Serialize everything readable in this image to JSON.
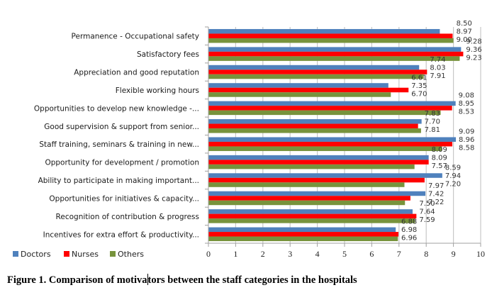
{
  "chart_data": {
    "type": "bar",
    "orientation": "horizontal",
    "title": "",
    "xlabel": "",
    "ylabel": "",
    "xlim": [
      0,
      10
    ],
    "x_ticks": [
      "0",
      "1",
      "2",
      "3",
      "4",
      "5",
      "6",
      "7",
      "8",
      "9",
      "10"
    ],
    "grid": true,
    "legend_position": "bottom-left",
    "categories": [
      "Permanence - Occupational safety",
      "Satisfactory fees",
      "Appreciation and good reputation",
      "Flexible working hours",
      "Opportunities to develop new knowledge -...",
      "Good supervision & support from senior...",
      "Staff training, seminars & training in new...",
      "Opportunity for development / promotion",
      "Ability to participate in making important...",
      "Opportunities for initiatives & capacity...",
      "Recognition of contribution & progress",
      "Incentives for extra effort & productivity..."
    ],
    "series": [
      {
        "name": "Doctors",
        "color": "#4f81bd",
        "values": [
          8.5,
          9.28,
          7.74,
          6.61,
          9.08,
          7.83,
          9.09,
          8.09,
          8.59,
          7.97,
          7.5,
          6.88
        ]
      },
      {
        "name": "Nurses",
        "color": "#ff0000",
        "values": [
          8.97,
          9.36,
          8.03,
          7.35,
          8.95,
          7.7,
          8.96,
          8.09,
          7.94,
          7.42,
          7.64,
          6.98
        ]
      },
      {
        "name": "Others",
        "color": "#77933c",
        "values": [
          9.0,
          9.23,
          7.91,
          6.7,
          8.53,
          7.81,
          8.58,
          7.57,
          7.2,
          7.22,
          7.59,
          6.96
        ]
      }
    ],
    "value_labels": [
      [
        "8.50",
        "8.97",
        "9.00"
      ],
      [
        "9.28",
        "9.36",
        "9.23"
      ],
      [
        "7.74",
        "8.03",
        "7.91"
      ],
      [
        "6.61",
        "7.35",
        "6.70"
      ],
      [
        "9.08",
        "8.95",
        "8.53"
      ],
      [
        "7.83",
        "7.70",
        "7.81"
      ],
      [
        "9.09",
        "8.96",
        "8.58"
      ],
      [
        "8.09",
        "8.09",
        "7.57"
      ],
      [
        "8.59",
        "7.94",
        "7.20"
      ],
      [
        "7.97",
        "7.42",
        "7.22"
      ],
      [
        "7.50",
        "7.64",
        "7.59"
      ],
      [
        "6.88",
        "6.98",
        "6.96"
      ]
    ]
  },
  "caption": {
    "before_cursor": "Figure 1. Comparison of motiva",
    "after_cursor": "tors between the staff categories in the hospitals"
  }
}
